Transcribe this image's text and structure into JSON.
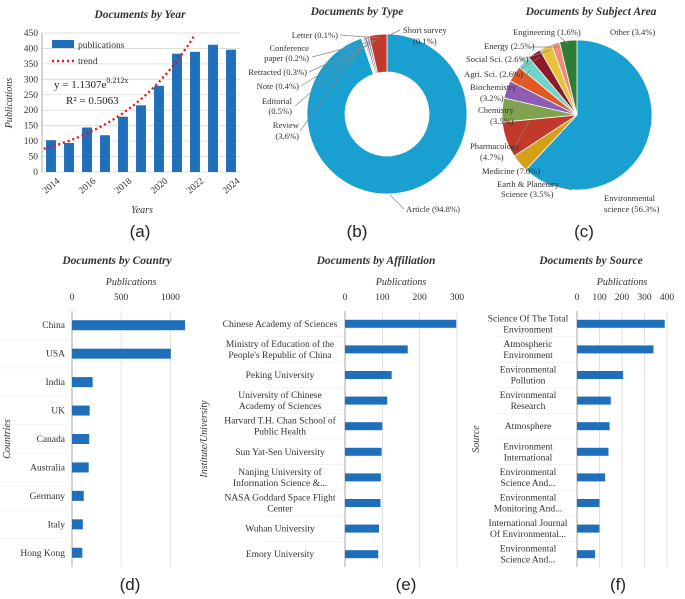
{
  "chart_data": [
    {
      "panel": "(a)",
      "type": "bar",
      "title": "Documents by Year",
      "xlabel": "Years",
      "ylabel": "Publications",
      "categories": [
        "2014",
        "2015",
        "2016",
        "2017",
        "2018",
        "2019",
        "2020",
        "2021",
        "2022",
        "2023",
        "2024"
      ],
      "values": [
        103,
        94,
        144,
        119,
        179,
        216,
        279,
        383,
        389,
        412,
        396
      ],
      "x_tick_labels": [
        "2014",
        "2016",
        "2018",
        "2020",
        "2022",
        "2024"
      ],
      "ylim": [
        0,
        450
      ],
      "y_ticks": [
        0,
        50,
        100,
        150,
        200,
        250,
        300,
        350,
        400,
        450
      ],
      "legend": [
        "publications",
        "trend"
      ],
      "equation": "y = 1.1307e",
      "equation_exp": "0.212x",
      "r_squared": "R² = 0.5063",
      "trend": {
        "a": 1.1307,
        "b": 0.212
      }
    },
    {
      "panel": "(b)",
      "type": "pie",
      "donut": true,
      "title": "Documents by Type",
      "slices": [
        {
          "label": "Article (94.8%)",
          "value": 94.8,
          "color": "#1a9fd1"
        },
        {
          "label": "Review (3.6%)",
          "value": 3.6,
          "color": "#c0392b"
        },
        {
          "label": "Editorial (0.5%)",
          "value": 0.5,
          "color": "#8aa0b0"
        },
        {
          "label": "Note (0.4%)",
          "value": 0.4,
          "color": "#7a4da8"
        },
        {
          "label": "Retracted (0.3%)",
          "value": 0.3,
          "color": "#6a9c4a"
        },
        {
          "label": "Conference paper (0.2%)",
          "value": 0.2,
          "color": "#d4a84a"
        },
        {
          "label": "Letter (0.1%)",
          "value": 0.1,
          "color": "#c97a4a"
        },
        {
          "label": "Short survey (0.1%)",
          "value": 0.1,
          "color": "#5cb85c"
        }
      ],
      "label_lines": {
        "letter": "Letter (0.1%)",
        "conf1": "Conference",
        "conf2": "paper (0.2%)",
        "retracted": "Retracted (0.3%)",
        "note": "Note (0.4%)",
        "editorial1": "Editorial",
        "editorial2": "(0.5%)",
        "review1": "Review",
        "review2": "(3.6%)",
        "short1": "Short survey",
        "short2": "(0.1%)",
        "article": "Article (94.8%)"
      }
    },
    {
      "panel": "(c)",
      "type": "pie",
      "title": "Documents by Subject Area",
      "slices": [
        {
          "label": "Environmental science (56.3%)",
          "value": 56.3,
          "color": "#1a9fd1"
        },
        {
          "label": "Earth & Planetary Science (3.5%)",
          "value": 3.5,
          "color": "#d4a017"
        },
        {
          "label": "Medicine (7.0%)",
          "value": 7.0,
          "color": "#c0392b"
        },
        {
          "label": "Pharmacology (4.7%)",
          "value": 4.7,
          "color": "#7fa34f"
        },
        {
          "label": "Chemistry (3.5%)",
          "value": 3.5,
          "color": "#8e5bb5"
        },
        {
          "label": "Biochemistry (3.2%)",
          "value": 3.2,
          "color": "#e4571f"
        },
        {
          "label": "Agri. Sci. (2.6%)",
          "value": 2.6,
          "color": "#6ed5c8"
        },
        {
          "label": "Social Sci. (2.6%)",
          "value": 2.6,
          "color": "#8b1a2b"
        },
        {
          "label": "Energy (2.5%)",
          "value": 2.5,
          "color": "#e8c43a"
        },
        {
          "label": "Engineering (1.6%)",
          "value": 1.6,
          "color": "#f08c7a"
        },
        {
          "label": "Other (3.4%)",
          "value": 3.4,
          "color": "#2e7d32"
        }
      ],
      "label_lines": {
        "other": "Other (3.4%)",
        "engineering": "Engineering (1.6%)",
        "energy": "Energy (2.5%)",
        "social": "Social Sci. (2.6%)",
        "agri": "Agri. Sci. (2.6%)",
        "bio1": "Biochemistry",
        "bio2": "(3.2%)",
        "chem1": "Chemistry",
        "chem2": "(3.5%)",
        "pharm1": "Pharmacology",
        "pharm2": "(4.7%)",
        "medicine": "Medicine (7.0%)",
        "earth1": "Earth & Planetary",
        "earth2": "Science (3.5%)",
        "env1": "Environmental",
        "env2": "science (56.3%)"
      }
    },
    {
      "panel": "(d)",
      "type": "bar",
      "orientation": "horizontal",
      "title": "Documents by Country",
      "xlabel": "Publications",
      "ylabel": "Countries",
      "xlim": [
        0,
        1200
      ],
      "x_ticks": [
        0,
        500,
        1000
      ],
      "categories": [
        "China",
        "USA",
        "India",
        "UK",
        "Canada",
        "Australia",
        "Germany",
        "Italy",
        "Hong Kong"
      ],
      "values": [
        1150,
        1005,
        210,
        180,
        175,
        170,
        120,
        110,
        105
      ]
    },
    {
      "panel": "(e)",
      "type": "bar",
      "orientation": "horizontal",
      "title": "Documents by Affiliation",
      "xlabel": "Publications",
      "ylabel": "Institute/University",
      "xlim": [
        0,
        300
      ],
      "x_ticks": [
        0,
        100,
        200,
        300
      ],
      "categories": [
        [
          "Chinese Academy of Sciences"
        ],
        [
          "Ministry of Education of the",
          "People's Republic of China"
        ],
        [
          "Peking University"
        ],
        [
          "University of Chinese",
          "Academy of Sciences"
        ],
        [
          "Harvard T.H. Chan School of",
          "Public Health"
        ],
        [
          "Sun Yat-Sen University"
        ],
        [
          "Nanjing University of",
          "Information Science &..."
        ],
        [
          "NASA Goddard Space Flight",
          "Center"
        ],
        [
          "Wuhan University"
        ],
        [
          "Emory University"
        ]
      ],
      "values": [
        298,
        168,
        125,
        113,
        100,
        98,
        96,
        95,
        91,
        89
      ]
    },
    {
      "panel": "(f)",
      "type": "bar",
      "orientation": "horizontal",
      "title": "Documents by Source",
      "xlabel": "Publications",
      "ylabel": "Source",
      "xlim": [
        0,
        400
      ],
      "x_ticks": [
        0,
        100,
        200,
        300,
        400
      ],
      "categories": [
        [
          "Science Of The Total",
          "Environment"
        ],
        [
          "Atmospheric",
          "Environment"
        ],
        [
          "Environmental",
          "Pollution"
        ],
        [
          "Environmental",
          "Research"
        ],
        [
          "Atmosphere"
        ],
        [
          "Environment",
          "International"
        ],
        [
          "Environmental",
          "Science And..."
        ],
        [
          "Environmental",
          "Monitoring And..."
        ],
        [
          "International Journal",
          "Of Environmental..."
        ],
        [
          "Environmental",
          "Science And..."
        ]
      ],
      "values": [
        390,
        340,
        205,
        150,
        145,
        140,
        125,
        100,
        100,
        80
      ]
    }
  ]
}
